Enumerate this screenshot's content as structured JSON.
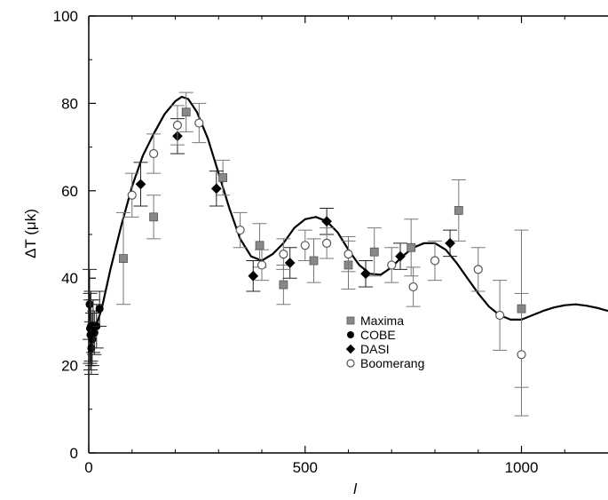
{
  "chart_data": {
    "type": "scatter",
    "xlabel": "l",
    "ylabel": "ΔT (μk)",
    "xlim": [
      0,
      1200
    ],
    "ylim": [
      0,
      100
    ],
    "x_ticks": [
      0,
      500,
      1000
    ],
    "y_ticks": [
      0,
      20,
      40,
      60,
      80,
      100
    ],
    "grid": false,
    "legend_position": "center-right",
    "theory_curve": {
      "x": [
        0,
        10,
        30,
        50,
        75,
        100,
        125,
        150,
        175,
        200,
        215,
        230,
        250,
        275,
        300,
        325,
        350,
        375,
        400,
        425,
        450,
        475,
        500,
        525,
        550,
        575,
        600,
        625,
        650,
        675,
        700,
        725,
        750,
        775,
        800,
        825,
        850,
        875,
        900,
        925,
        950,
        975,
        1000,
        1025,
        1050,
        1075,
        1100,
        1125,
        1150,
        1175,
        1200
      ],
      "y": [
        23,
        27,
        33,
        42,
        52,
        61,
        68,
        73,
        77.5,
        80.5,
        81.5,
        81,
        78,
        72,
        64,
        56,
        49,
        45,
        44,
        45.5,
        48,
        51.5,
        53.5,
        54,
        53,
        50.5,
        46.5,
        43,
        41,
        40.8,
        42.5,
        45,
        47,
        48,
        48,
        46.5,
        43.5,
        40,
        36.5,
        33.5,
        31.5,
        30.5,
        30.5,
        31.5,
        32.5,
        33.3,
        33.8,
        34,
        33.7,
        33.2,
        32.5
      ]
    },
    "series": [
      {
        "name": "Maxima",
        "marker": "square",
        "points": [
          {
            "x": 80,
            "y": 44.5,
            "err": 10.5
          },
          {
            "x": 150,
            "y": 54,
            "err": 5
          },
          {
            "x": 225,
            "y": 78,
            "err": 4.5
          },
          {
            "x": 310,
            "y": 63,
            "err": 4
          },
          {
            "x": 395,
            "y": 47.5,
            "err": 5
          },
          {
            "x": 450,
            "y": 38.5,
            "err": 4.5
          },
          {
            "x": 520,
            "y": 44,
            "err": 5
          },
          {
            "x": 600,
            "y": 43,
            "err": 5.5
          },
          {
            "x": 660,
            "y": 46,
            "err": 5.5
          },
          {
            "x": 745,
            "y": 47,
            "err": 6.5
          },
          {
            "x": 855,
            "y": 55.5,
            "err": 7
          },
          {
            "x": 1000,
            "y": 33,
            "err": 18
          }
        ]
      },
      {
        "name": "COBE",
        "marker": "circle-filled",
        "points": [
          {
            "x": 2,
            "y": 34,
            "err": 8
          },
          {
            "x": 3,
            "y": 28.5,
            "err": 8
          },
          {
            "x": 4,
            "y": 27,
            "err": 8
          },
          {
            "x": 5,
            "y": 29,
            "err": 8
          },
          {
            "x": 6,
            "y": 24,
            "err": 6
          },
          {
            "x": 8,
            "y": 26,
            "err": 6
          },
          {
            "x": 10,
            "y": 29,
            "err": 6
          },
          {
            "x": 13,
            "y": 27.5,
            "err": 5
          },
          {
            "x": 18,
            "y": 29,
            "err": 5
          },
          {
            "x": 25,
            "y": 33,
            "err": 4
          }
        ]
      },
      {
        "name": "DASI",
        "marker": "diamond",
        "points": [
          {
            "x": 120,
            "y": 61.5,
            "err": 5
          },
          {
            "x": 205,
            "y": 72.5,
            "err": 4
          },
          {
            "x": 295,
            "y": 60.5,
            "err": 4
          },
          {
            "x": 380,
            "y": 40.5,
            "err": 3.5
          },
          {
            "x": 465,
            "y": 43.5,
            "err": 3.5
          },
          {
            "x": 550,
            "y": 53,
            "err": 3
          },
          {
            "x": 640,
            "y": 41,
            "err": 3
          },
          {
            "x": 720,
            "y": 45,
            "err": 3
          },
          {
            "x": 835,
            "y": 48,
            "err": 3
          }
        ]
      },
      {
        "name": "Boomerang",
        "marker": "circle-open",
        "points": [
          {
            "x": 100,
            "y": 59,
            "err": 5
          },
          {
            "x": 150,
            "y": 68.5,
            "err": 4.5
          },
          {
            "x": 205,
            "y": 75,
            "err": 4.5
          },
          {
            "x": 255,
            "y": 75.5,
            "err": 4.5
          },
          {
            "x": 350,
            "y": 51,
            "err": 4
          },
          {
            "x": 400,
            "y": 43,
            "err": 3.5
          },
          {
            "x": 450,
            "y": 45.5,
            "err": 3.5
          },
          {
            "x": 500,
            "y": 47.5,
            "err": 3.5
          },
          {
            "x": 550,
            "y": 48,
            "err": 3.5
          },
          {
            "x": 600,
            "y": 45.5,
            "err": 4
          },
          {
            "x": 700,
            "y": 43,
            "err": 4
          },
          {
            "x": 750,
            "y": 38,
            "err": 4.5
          },
          {
            "x": 800,
            "y": 44,
            "err": 4.5
          },
          {
            "x": 900,
            "y": 42,
            "err": 5
          },
          {
            "x": 950,
            "y": 31.5,
            "err": 8
          },
          {
            "x": 1000,
            "y": 22.5,
            "err": 14
          }
        ]
      }
    ]
  }
}
